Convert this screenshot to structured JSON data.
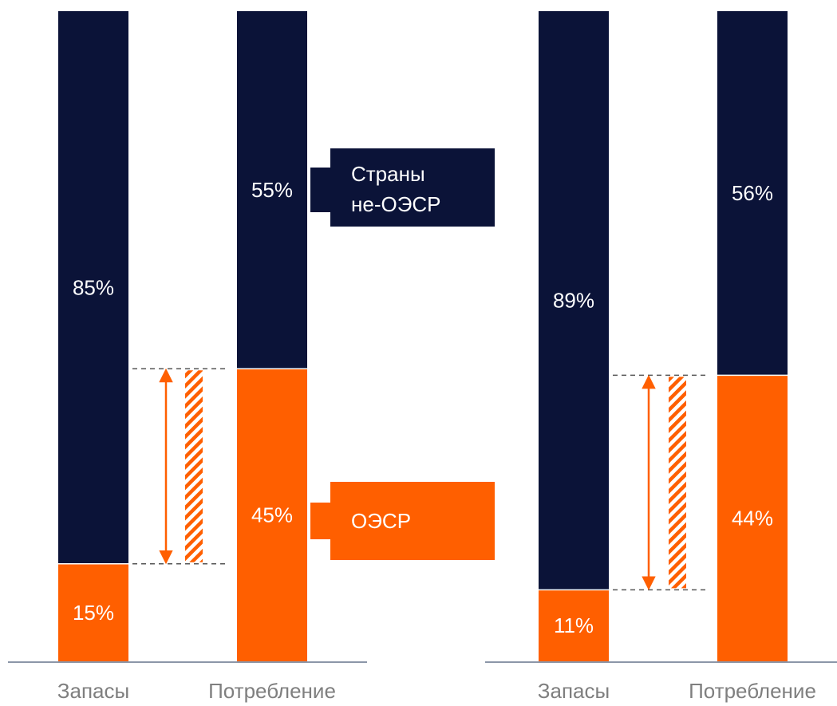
{
  "colors": {
    "non_oecd": "#0b1338",
    "oecd": "#ff5f00",
    "axis": "#8c96a8",
    "dash": "#555555",
    "category_text": "#7f7f7f",
    "label_text": "#ffffff"
  },
  "legend": {
    "non_oecd_line1": "Страны",
    "non_oecd_line2": "не-ОЭСР",
    "oecd": "ОЭСР"
  },
  "chart_data": [
    {
      "type": "bar",
      "stacked": true,
      "percent": true,
      "categories": [
        "Запасы",
        "Потребление"
      ],
      "series": [
        {
          "name": "ОЭСР",
          "values": [
            15,
            45
          ],
          "labels": [
            "15%",
            "45%"
          ]
        },
        {
          "name": "Страны не-ОЭСР",
          "values": [
            85,
            55
          ],
          "labels": [
            "85%",
            "55%"
          ]
        }
      ],
      "ylim": [
        0,
        100
      ],
      "gap_annotation": {
        "from": 15,
        "to": 45
      }
    },
    {
      "type": "bar",
      "stacked": true,
      "percent": true,
      "categories": [
        "Запасы",
        "Потребление"
      ],
      "series": [
        {
          "name": "ОЭСР",
          "values": [
            11,
            44
          ],
          "labels": [
            "11%",
            "44%"
          ]
        },
        {
          "name": "Страны не-ОЭСР",
          "values": [
            89,
            56
          ],
          "labels": [
            "89%",
            "56%"
          ]
        }
      ],
      "ylim": [
        0,
        100
      ],
      "gap_annotation": {
        "from": 11,
        "to": 44
      }
    }
  ]
}
